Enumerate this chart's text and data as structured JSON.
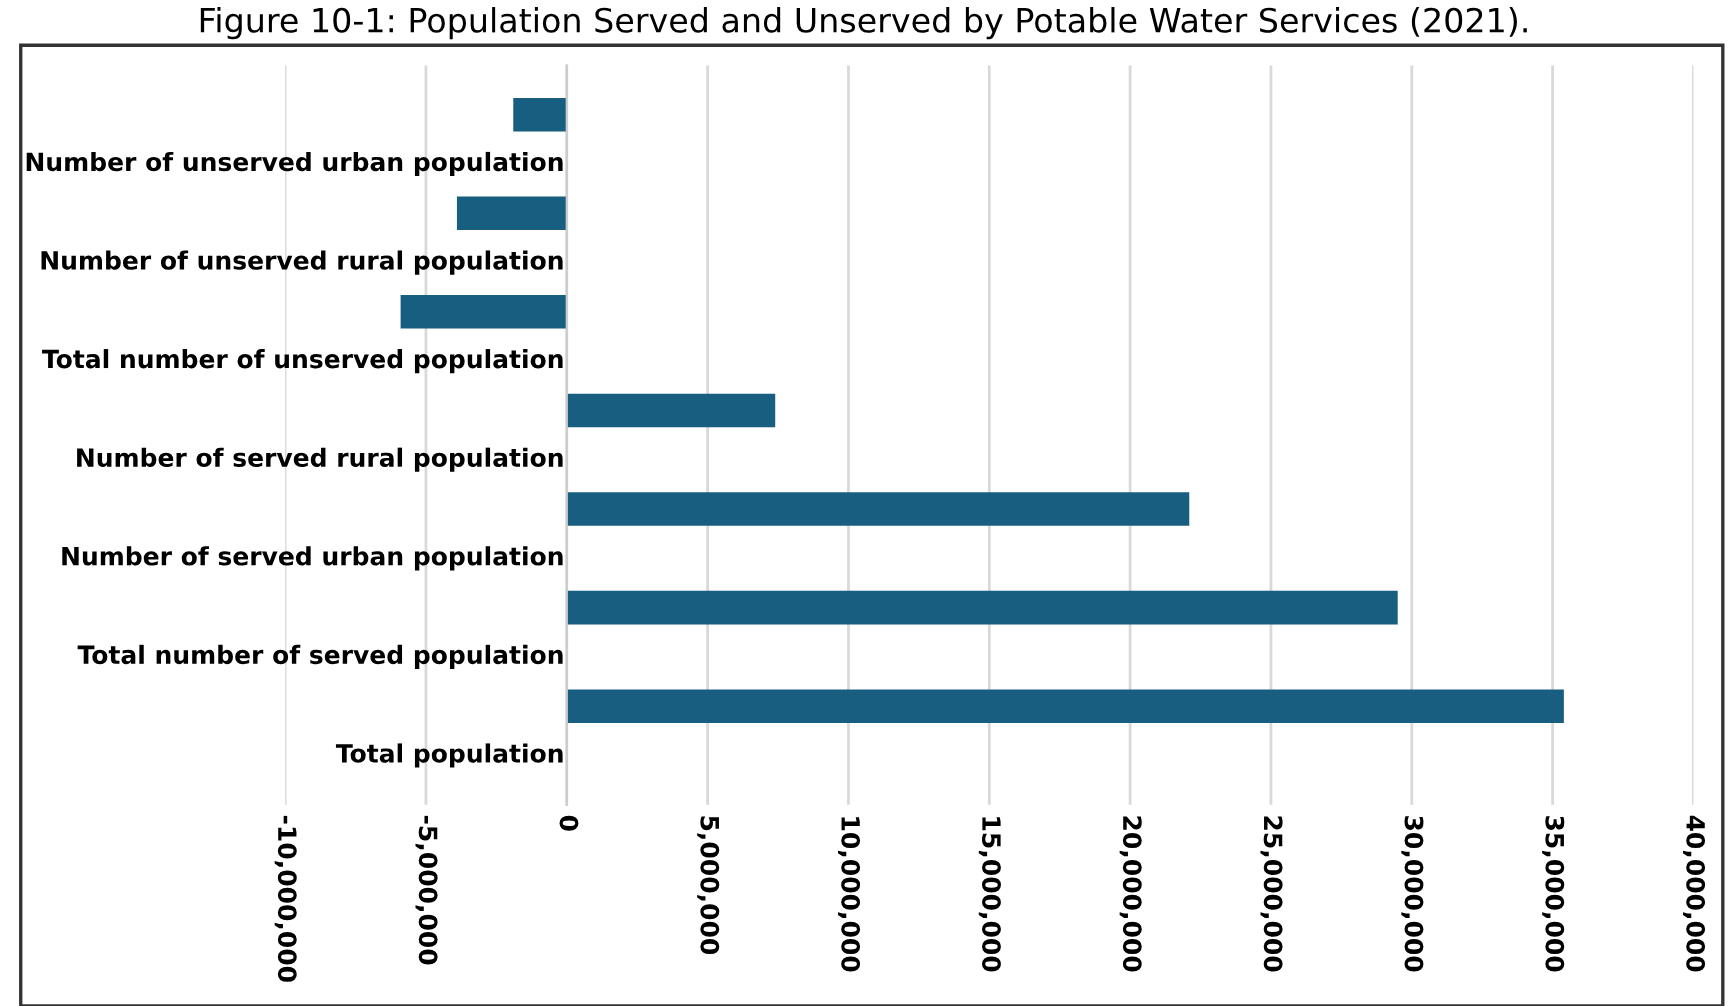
{
  "chart_data": {
    "type": "bar",
    "orientation": "horizontal",
    "title": "Figure 10-1: Population Served and Unserved by Potable Water Services (2021).",
    "categories": [
      "Number of unserved urban population",
      "Number of unserved rural population",
      "Total number of unserved population",
      "Number of served rural population",
      "Number of served urban population",
      "Total number of served population",
      "Total population"
    ],
    "values": [
      -1900000,
      -3900000,
      -5900000,
      7400000,
      22100000,
      29500000,
      35400000
    ],
    "color": "#175e80",
    "xlim": [
      -10000000,
      40000000
    ],
    "xticks": [
      {
        "value": -10000000,
        "label": "-10,000,000"
      },
      {
        "value": -5000000,
        "label": "-5,000,000"
      },
      0,
      {
        "value": 5000000,
        "label": "5,000,000"
      },
      {
        "value": 10000000,
        "label": "10,000,000"
      },
      {
        "value": 15000000,
        "label": "15,000,000"
      },
      {
        "value": 20000000,
        "label": "20,000,000"
      },
      {
        "value": 25000000,
        "label": "25,000,000"
      },
      {
        "value": 30000000,
        "label": "30,000,000"
      },
      {
        "value": 35000000,
        "label": "35,000,000"
      },
      {
        "value": 40000000,
        "label": "40,000,000"
      }
    ],
    "grid": "x"
  }
}
